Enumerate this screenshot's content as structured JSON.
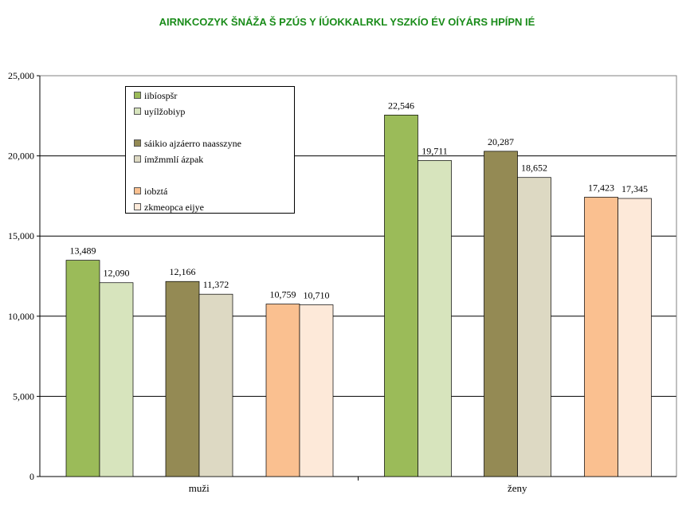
{
  "chart_data": {
    "type": "bar",
    "title": "AIRNKCOZYK ŠNÁŽA Š PZÚS Y ÍÚOKKALRKL YSZKÍO ÉV OÍYÁRS HPÍPN IÉ",
    "categories": [
      "muži",
      "ženy"
    ],
    "series": [
      {
        "name": "iibíospšr",
        "color": "#9bbb59",
        "values": [
          13489,
          22546
        ]
      },
      {
        "name": "uyílžobiyp",
        "color": "#d7e4bd",
        "values": [
          12090,
          19711
        ]
      },
      {
        "name": "sáikio ajzáerro naasszyne",
        "color": "#948a54",
        "values": [
          12166,
          20287
        ]
      },
      {
        "name": "ímžmmlí ázpak",
        "color": "#ddd9c3",
        "values": [
          11372,
          18652
        ]
      },
      {
        "name": "iobztá",
        "color": "#fac090",
        "values": [
          10759,
          17423
        ]
      },
      {
        "name": "zkmeopca eijye",
        "color": "#fde9d9",
        "values": [
          10710,
          17345
        ]
      }
    ],
    "value_labels": [
      [
        "13,489",
        "22,546"
      ],
      [
        "12,090",
        "19,711"
      ],
      [
        "12,166",
        "20,287"
      ],
      [
        "11,372",
        "18,652"
      ],
      [
        "10,759",
        "17,423"
      ],
      [
        "10,710",
        "17,345"
      ]
    ],
    "yticks": [
      "0",
      "5,000",
      "10,000",
      "15,000",
      "20,000",
      "25,000"
    ],
    "ylim": [
      0,
      25000
    ],
    "grid": true,
    "legend_position": "top-left-inside"
  }
}
